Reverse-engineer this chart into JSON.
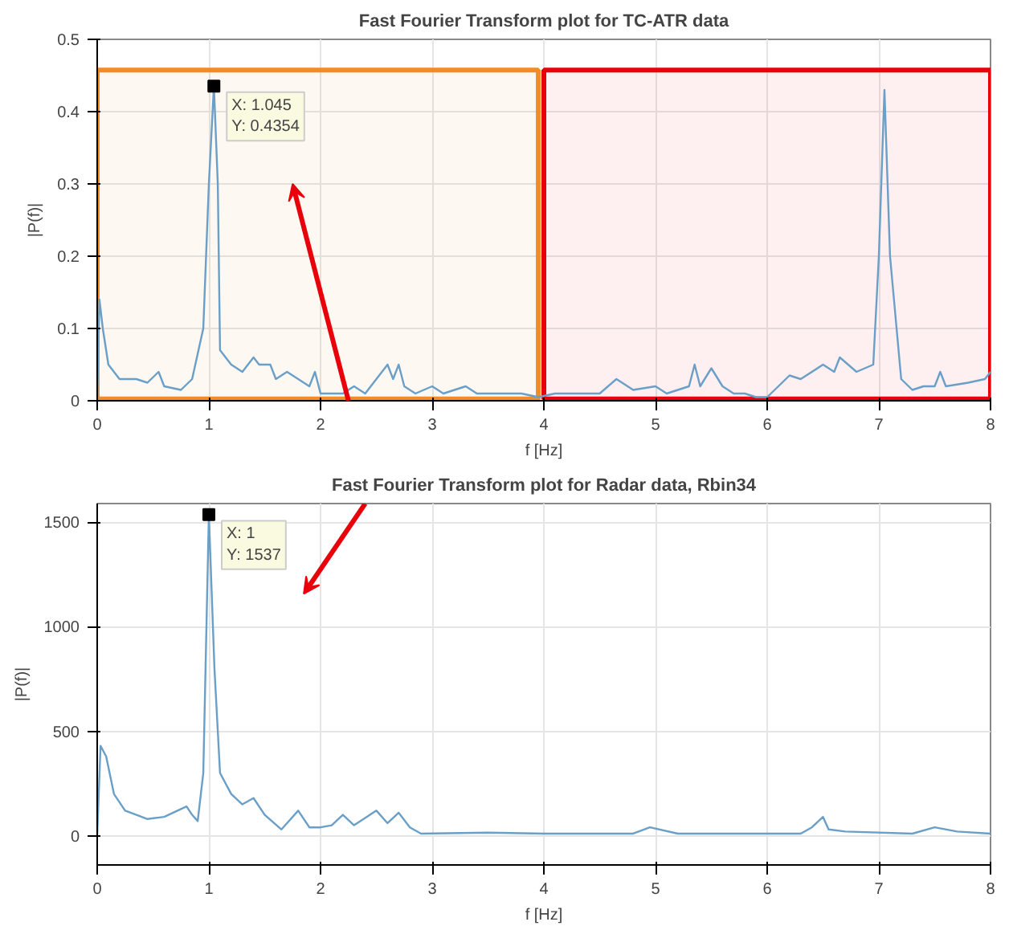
{
  "chart_data": [
    {
      "type": "line",
      "title": "Fast Fourier Transform plot for TC-ATR data",
      "xlabel": "f [Hz]",
      "ylabel": "|P(f)|",
      "xlim": [
        0,
        8
      ],
      "ylim": [
        0,
        0.5
      ],
      "xticks": [
        0,
        1,
        2,
        3,
        4,
        5,
        6,
        7,
        8
      ],
      "yticks": [
        0,
        0.1,
        0.2,
        0.3,
        0.4,
        0.5
      ],
      "grid": true,
      "x": [
        0,
        0.02,
        0.05,
        0.1,
        0.2,
        0.35,
        0.45,
        0.55,
        0.6,
        0.75,
        0.85,
        0.95,
        1.0,
        1.045,
        1.08,
        1.1,
        1.2,
        1.3,
        1.4,
        1.45,
        1.55,
        1.6,
        1.7,
        1.8,
        1.9,
        1.95,
        2.0,
        2.1,
        2.2,
        2.3,
        2.4,
        2.5,
        2.6,
        2.65,
        2.7,
        2.75,
        2.85,
        3.0,
        3.1,
        3.3,
        3.4,
        3.6,
        3.8,
        3.95,
        4.1,
        4.3,
        4.5,
        4.65,
        4.8,
        5.0,
        5.1,
        5.3,
        5.35,
        5.4,
        5.5,
        5.6,
        5.7,
        5.8,
        5.9,
        6.0,
        6.1,
        6.2,
        6.3,
        6.5,
        6.6,
        6.65,
        6.8,
        6.95,
        7.0,
        7.05,
        7.1,
        7.2,
        7.3,
        7.4,
        7.5,
        7.55,
        7.6,
        7.8,
        7.95,
        8.0
      ],
      "series": [
        {
          "color": "#6a9fc8",
          "values": [
            0.0,
            0.14,
            0.1,
            0.05,
            0.03,
            0.03,
            0.025,
            0.04,
            0.02,
            0.015,
            0.03,
            0.1,
            0.3,
            0.4354,
            0.3,
            0.07,
            0.05,
            0.04,
            0.06,
            0.05,
            0.05,
            0.03,
            0.04,
            0.03,
            0.02,
            0.04,
            0.01,
            0.01,
            0.01,
            0.02,
            0.01,
            0.03,
            0.05,
            0.03,
            0.05,
            0.02,
            0.01,
            0.02,
            0.01,
            0.02,
            0.01,
            0.01,
            0.01,
            0.005,
            0.01,
            0.01,
            0.01,
            0.03,
            0.015,
            0.02,
            0.01,
            0.02,
            0.05,
            0.02,
            0.045,
            0.02,
            0.01,
            0.01,
            0.005,
            0.005,
            0.02,
            0.035,
            0.03,
            0.05,
            0.04,
            0.06,
            0.04,
            0.05,
            0.2,
            0.43,
            0.2,
            0.03,
            0.015,
            0.02,
            0.02,
            0.04,
            0.02,
            0.025,
            0.03,
            0.04
          ]
        }
      ],
      "bands": [
        {
          "axis": "x",
          "from": 0,
          "to": 3.95,
          "color": "#f28c28"
        },
        {
          "axis": "x",
          "from": 4.0,
          "to": 8,
          "color": "#e8000b"
        }
      ],
      "annotations": [
        {
          "text": "X: 1.045\nY: 0.4354",
          "x": 1.045,
          "y": 0.4354
        }
      ]
    },
    {
      "type": "line",
      "title": "Fast Fourier Transform plot for Radar data, Rbin34",
      "xlabel": "f [Hz]",
      "ylabel": "|P(f)|",
      "xlim": [
        0,
        8
      ],
      "ylim": [
        -140,
        1590
      ],
      "xticks": [
        0,
        1,
        2,
        3,
        4,
        5,
        6,
        7,
        8
      ],
      "yticks": [
        0,
        500,
        1000,
        1500
      ],
      "grid": true,
      "x": [
        0,
        0.03,
        0.08,
        0.15,
        0.25,
        0.45,
        0.6,
        0.8,
        0.85,
        0.9,
        0.95,
        1.0,
        1.05,
        1.1,
        1.2,
        1.3,
        1.4,
        1.5,
        1.65,
        1.8,
        1.9,
        2.0,
        2.1,
        2.2,
        2.3,
        2.5,
        2.6,
        2.7,
        2.8,
        2.9,
        3.5,
        4.0,
        4.8,
        4.95,
        5.2,
        6.3,
        6.4,
        6.5,
        6.55,
        6.7,
        7.3,
        7.5,
        7.7,
        8.0
      ],
      "series": [
        {
          "color": "#6a9fc8",
          "values": [
            0,
            430,
            380,
            200,
            120,
            80,
            90,
            140,
            100,
            70,
            300,
            1537,
            800,
            300,
            200,
            150,
            180,
            100,
            30,
            120,
            40,
            40,
            50,
            100,
            50,
            120,
            60,
            110,
            40,
            10,
            15,
            10,
            10,
            40,
            10,
            10,
            40,
            90,
            30,
            20,
            10,
            40,
            20,
            10
          ]
        }
      ],
      "annotations": [
        {
          "text": "X: 1\nY: 1537",
          "x": 1,
          "y": 1537
        }
      ]
    }
  ]
}
